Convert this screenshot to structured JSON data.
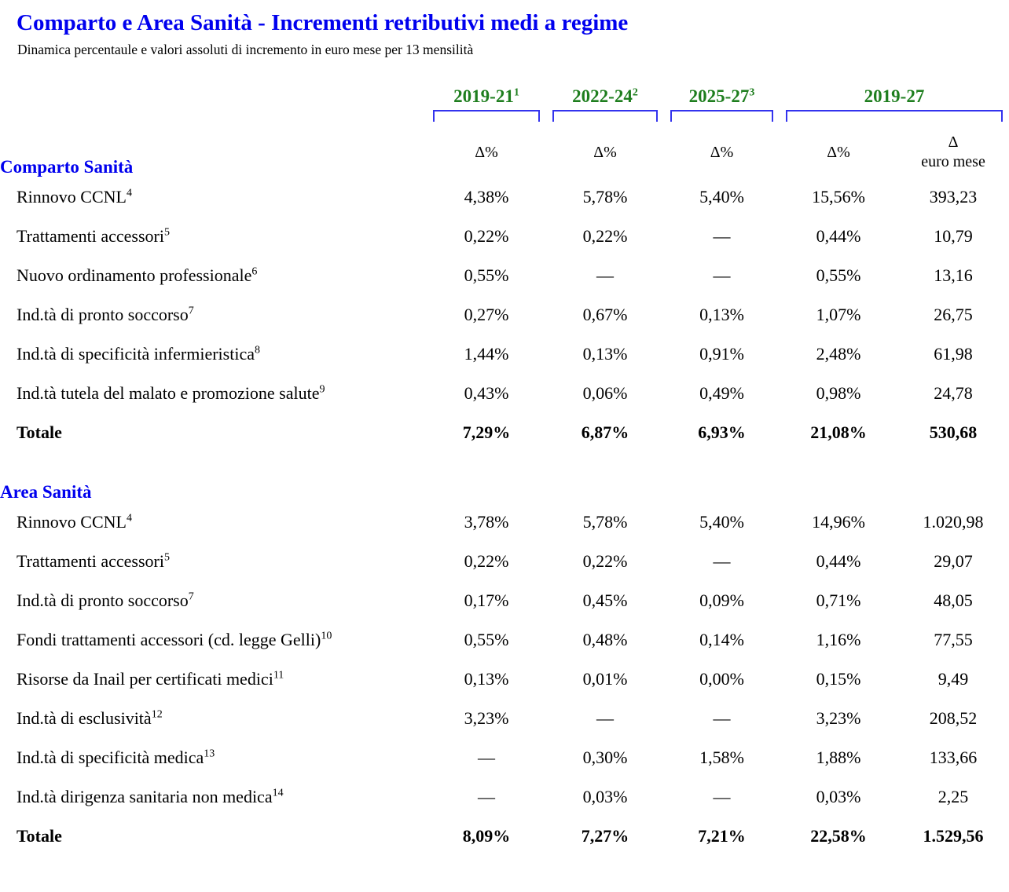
{
  "title": "Comparto e Area Sanità - Incrementi retributivi medi a regime",
  "subtitle": "Dinamica percentaule e valori assoluti di incremento in euro mese per 13 mensilità",
  "colors": {
    "title_blue": "#0000ee",
    "section_blue": "#0000ee",
    "header_green": "#1e7e1e",
    "bracket_blue": "#3333ee",
    "text": "#000000",
    "background": "#ffffff"
  },
  "columns": {
    "periods": [
      {
        "label": "2019-21",
        "sup": "1"
      },
      {
        "label": "2022-24",
        "sup": "2"
      },
      {
        "label": "2025-27",
        "sup": "3"
      },
      {
        "label": "2019-27",
        "sup": ""
      }
    ],
    "delta_pct": "Δ%",
    "delta_euro": {
      "line1": "Δ",
      "line2": "euro mese"
    }
  },
  "sections": [
    {
      "name": "Comparto Sanità",
      "rows": [
        {
          "label": "Rinnovo CCNL",
          "sup": "4",
          "total": false,
          "values": [
            "4,38%",
            "5,78%",
            "5,40%",
            "15,56%",
            "393,23"
          ]
        },
        {
          "label": "Trattamenti accessori",
          "sup": "5",
          "total": false,
          "values": [
            "0,22%",
            "0,22%",
            "—",
            "0,44%",
            "10,79"
          ]
        },
        {
          "label": "Nuovo ordinamento professionale",
          "sup": "6",
          "total": false,
          "values": [
            "0,55%",
            "—",
            "—",
            "0,55%",
            "13,16"
          ]
        },
        {
          "label": "Ind.tà di pronto soccorso",
          "sup": "7",
          "total": false,
          "values": [
            "0,27%",
            "0,67%",
            "0,13%",
            "1,07%",
            "26,75"
          ]
        },
        {
          "label": "Ind.tà di specificità infermieristica",
          "sup": "8",
          "total": false,
          "values": [
            "1,44%",
            "0,13%",
            "0,91%",
            "2,48%",
            "61,98"
          ]
        },
        {
          "label": "Ind.tà tutela del malato e promozione salute",
          "sup": "9",
          "total": false,
          "values": [
            "0,43%",
            "0,06%",
            "0,49%",
            "0,98%",
            "24,78"
          ]
        },
        {
          "label": "Totale",
          "sup": "",
          "total": true,
          "values": [
            "7,29%",
            "6,87%",
            "6,93%",
            "21,08%",
            "530,68"
          ]
        }
      ]
    },
    {
      "name": "Area Sanità",
      "rows": [
        {
          "label": "Rinnovo CCNL",
          "sup": "4",
          "total": false,
          "values": [
            "3,78%",
            "5,78%",
            "5,40%",
            "14,96%",
            "1.020,98"
          ]
        },
        {
          "label": "Trattamenti accessori",
          "sup": "5",
          "total": false,
          "values": [
            "0,22%",
            "0,22%",
            "—",
            "0,44%",
            "29,07"
          ]
        },
        {
          "label": "Ind.tà di pronto soccorso",
          "sup": "7",
          "total": false,
          "values": [
            "0,17%",
            "0,45%",
            "0,09%",
            "0,71%",
            "48,05"
          ]
        },
        {
          "label": "Fondi trattamenti accessori (cd. legge Gelli)",
          "sup": "10",
          "total": false,
          "values": [
            "0,55%",
            "0,48%",
            "0,14%",
            "1,16%",
            "77,55"
          ]
        },
        {
          "label": "Risorse da Inail per certificati medici",
          "sup": "11",
          "total": false,
          "values": [
            "0,13%",
            "0,01%",
            "0,00%",
            "0,15%",
            "9,49"
          ]
        },
        {
          "label": "Ind.tà di esclusività",
          "sup": "12",
          "total": false,
          "values": [
            "3,23%",
            "—",
            "—",
            "3,23%",
            "208,52"
          ]
        },
        {
          "label": "Ind.tà di specificità medica",
          "sup": "13",
          "total": false,
          "values": [
            "—",
            "0,30%",
            "1,58%",
            "1,88%",
            "133,66"
          ]
        },
        {
          "label": "Ind.tà dirigenza sanitaria non medica",
          "sup": "14",
          "total": false,
          "values": [
            "—",
            "0,03%",
            "—",
            "0,03%",
            "2,25"
          ]
        },
        {
          "label": "Totale",
          "sup": "",
          "total": true,
          "values": [
            "8,09%",
            "7,27%",
            "7,21%",
            "22,58%",
            "1.529,56"
          ]
        }
      ]
    }
  ]
}
